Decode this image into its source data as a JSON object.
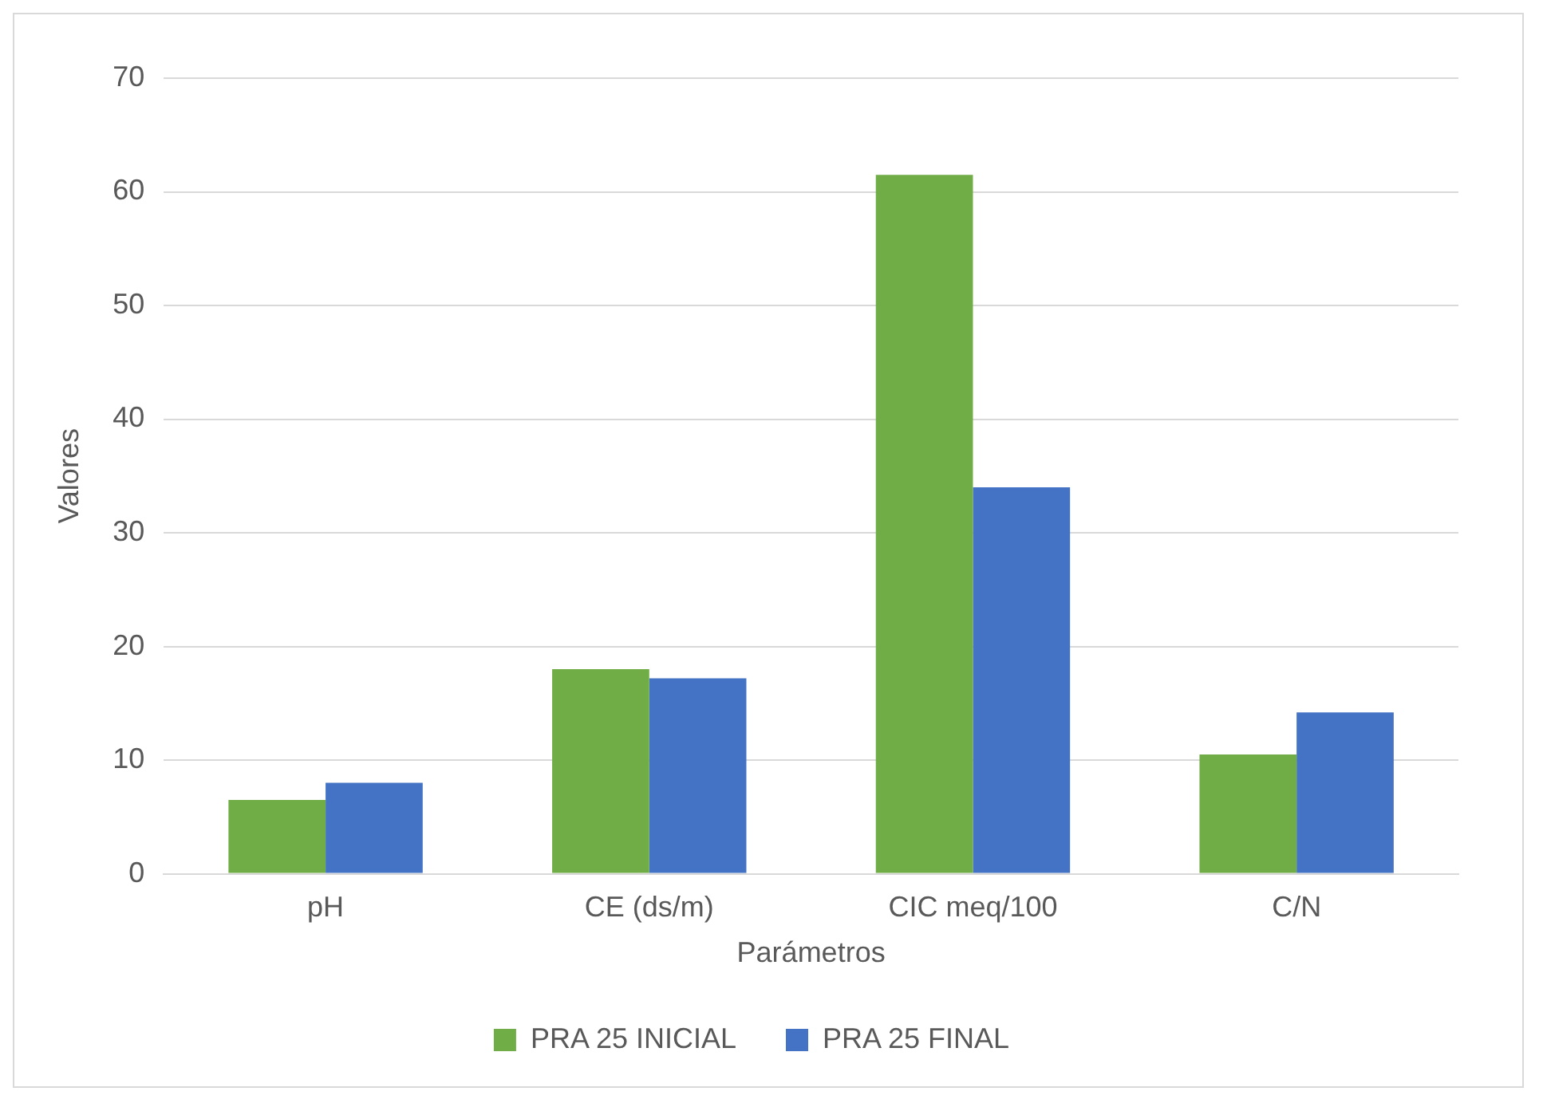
{
  "chart_data": {
    "type": "bar",
    "xlabel": "Parámetros",
    "ylabel": "Valores",
    "categories": [
      "pH",
      "CE (ds/m)",
      "CIC meq/100",
      "C/N"
    ],
    "series": [
      {
        "name": "PRA 25 INICIAL",
        "color": "#70ad47",
        "values": [
          6.5,
          18,
          61.5,
          10.5
        ]
      },
      {
        "name": "PRA 25 FINAL",
        "color": "#4472c4",
        "values": [
          8,
          17.2,
          34,
          14.2
        ]
      }
    ],
    "ylim": [
      0,
      70
    ],
    "yticks": [
      0,
      10,
      20,
      30,
      40,
      50,
      60,
      70
    ],
    "grid": "y",
    "legend": "bottom"
  }
}
